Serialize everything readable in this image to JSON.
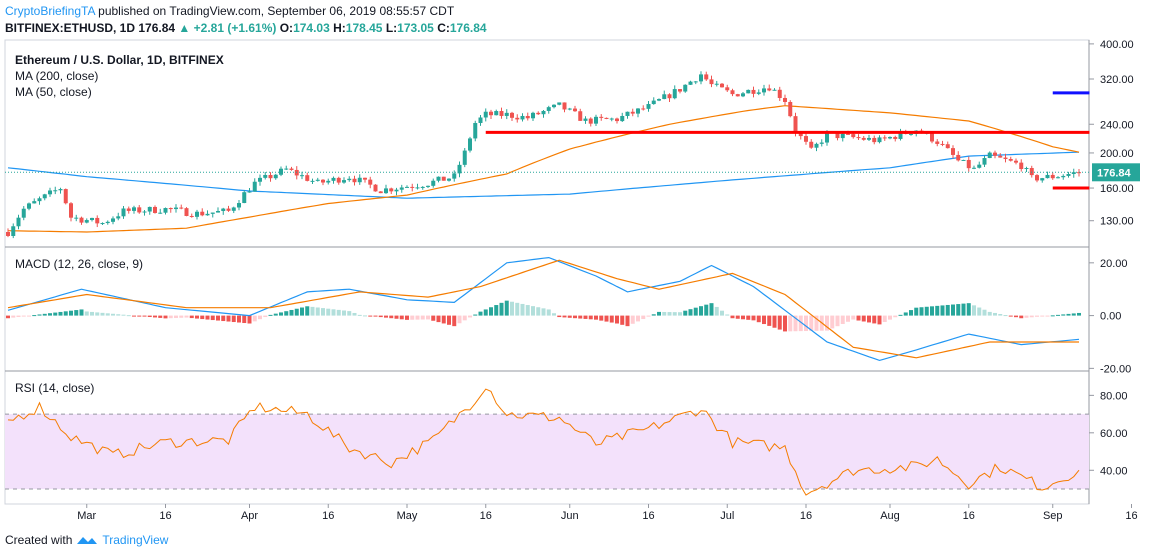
{
  "header": {
    "author": "CryptoBriefingTA",
    "published_text": " published on TradingView.com, September 06, 2019 08:55:57 CDT",
    "symbol": "BITFINEX:ETHUSD, 1D",
    "last": "176.84",
    "change": "+2.81 (+1.61%)",
    "open_label": "O:",
    "open": "174.03",
    "high_label": "H:",
    "high": "178.45",
    "low_label": "L:",
    "low": "173.05",
    "close_label": "C:",
    "close": "176.84"
  },
  "footer": {
    "created_with": "Created with",
    "brand": "TradingView"
  },
  "colors": {
    "up": "#26a69a",
    "down": "#ef5350",
    "ma200": "#2196f3",
    "ma50": "#f57c00",
    "macd": "#2196f3",
    "signal": "#f57c00",
    "rsi": "#f57c00",
    "level": "#ff0000",
    "target": "#1010ff",
    "band": "#f3e1fb"
  },
  "chart_data": [
    {
      "type": "candlestick",
      "title": "Ethereum / U.S. Dollar, 1D, BITFINEX",
      "indicator_labels": [
        "MA (200, close)",
        "MA (50, close)"
      ],
      "yscale": "log",
      "ylim": [
        110,
        410
      ],
      "y_ticks": [
        "400.00",
        "320.00",
        "240.00",
        "200.00",
        "160.00",
        "130.00"
      ],
      "last_price_label": "176.84",
      "x_ticks": [
        "Mar",
        "16",
        "Apr",
        "16",
        "May",
        "16",
        "Jun",
        "16",
        "Jul",
        "16",
        "Aug",
        "16",
        "Sep",
        "16"
      ],
      "date_range": [
        "2019-02-14",
        "2019-09-06"
      ],
      "price_path": [
        [
          "2019-02-14",
          121
        ],
        [
          "2019-02-17",
          140
        ],
        [
          "2019-02-24",
          160
        ],
        [
          "2019-02-26",
          133
        ],
        [
          "2019-03-04",
          128
        ],
        [
          "2019-03-08",
          138
        ],
        [
          "2019-03-16",
          140
        ],
        [
          "2019-03-22",
          136
        ],
        [
          "2019-03-28",
          138
        ],
        [
          "2019-04-02",
          165
        ],
        [
          "2019-04-08",
          180
        ],
        [
          "2019-04-14",
          165
        ],
        [
          "2019-04-20",
          172
        ],
        [
          "2019-04-26",
          158
        ],
        [
          "2019-05-01",
          162
        ],
        [
          "2019-05-05",
          165
        ],
        [
          "2019-05-10",
          172
        ],
        [
          "2019-05-12",
          200
        ],
        [
          "2019-05-14",
          242
        ],
        [
          "2019-05-16",
          255
        ],
        [
          "2019-05-20",
          255
        ],
        [
          "2019-05-24",
          250
        ],
        [
          "2019-05-30",
          270
        ],
        [
          "2019-06-04",
          245
        ],
        [
          "2019-06-10",
          248
        ],
        [
          "2019-06-16",
          268
        ],
        [
          "2019-06-22",
          300
        ],
        [
          "2019-06-26",
          330
        ],
        [
          "2019-06-28",
          308
        ],
        [
          "2019-07-02",
          290
        ],
        [
          "2019-07-09",
          305
        ],
        [
          "2019-07-12",
          280
        ],
        [
          "2019-07-14",
          230
        ],
        [
          "2019-07-17",
          202
        ],
        [
          "2019-07-20",
          225
        ],
        [
          "2019-07-30",
          216
        ],
        [
          "2019-08-06",
          232
        ],
        [
          "2019-08-10",
          215
        ],
        [
          "2019-08-14",
          190
        ],
        [
          "2019-08-17",
          180
        ],
        [
          "2019-08-20",
          196
        ],
        [
          "2019-08-26",
          185
        ],
        [
          "2019-08-28",
          170
        ],
        [
          "2019-09-01",
          172
        ],
        [
          "2019-09-06",
          176.84
        ]
      ],
      "ma200_path": [
        [
          "2019-02-14",
          182
        ],
        [
          "2019-03-01",
          172
        ],
        [
          "2019-04-01",
          157
        ],
        [
          "2019-05-01",
          150
        ],
        [
          "2019-06-01",
          154
        ],
        [
          "2019-07-01",
          168
        ],
        [
          "2019-08-01",
          182
        ],
        [
          "2019-08-16",
          196
        ],
        [
          "2019-09-06",
          201
        ]
      ],
      "ma50_path": [
        [
          "2019-02-14",
          122
        ],
        [
          "2019-03-01",
          121
        ],
        [
          "2019-03-20",
          124
        ],
        [
          "2019-04-01",
          133
        ],
        [
          "2019-04-16",
          145
        ],
        [
          "2019-05-01",
          153
        ],
        [
          "2019-05-20",
          175
        ],
        [
          "2019-06-01",
          205
        ],
        [
          "2019-06-20",
          240
        ],
        [
          "2019-07-05",
          262
        ],
        [
          "2019-07-12",
          270
        ],
        [
          "2019-08-01",
          258
        ],
        [
          "2019-08-16",
          245
        ],
        [
          "2019-09-01",
          208
        ],
        [
          "2019-09-06",
          201
        ]
      ],
      "levels": [
        {
          "name": "resistance",
          "price": 228,
          "from": "2019-05-16",
          "to": "2019-09-08"
        },
        {
          "name": "support",
          "price": 160,
          "from": "2019-09-01",
          "to": "2019-09-08"
        },
        {
          "name": "target",
          "price": 293,
          "from": "2019-09-01",
          "to": "2019-09-08"
        }
      ]
    },
    {
      "type": "line",
      "title": "MACD (12, 26, close, 9)",
      "ylim": [
        -21,
        26
      ],
      "y_ticks": [
        "20.00",
        "0.00",
        "-20.00"
      ],
      "tick_values": [
        20,
        0,
        -20
      ],
      "macd_path": [
        [
          "2019-02-14",
          2
        ],
        [
          "2019-02-28",
          10
        ],
        [
          "2019-03-16",
          3
        ],
        [
          "2019-04-01",
          0
        ],
        [
          "2019-04-12",
          9
        ],
        [
          "2019-04-20",
          10
        ],
        [
          "2019-05-01",
          6
        ],
        [
          "2019-05-10",
          5
        ],
        [
          "2019-05-20",
          20
        ],
        [
          "2019-05-28",
          22
        ],
        [
          "2019-06-06",
          15
        ],
        [
          "2019-06-12",
          9
        ],
        [
          "2019-06-22",
          13
        ],
        [
          "2019-06-28",
          19
        ],
        [
          "2019-07-06",
          11
        ],
        [
          "2019-07-20",
          -10
        ],
        [
          "2019-07-30",
          -17
        ],
        [
          "2019-08-06",
          -13
        ],
        [
          "2019-08-16",
          -7
        ],
        [
          "2019-08-26",
          -11
        ],
        [
          "2019-09-06",
          -9
        ]
      ],
      "signal_path": [
        [
          "2019-02-14",
          3
        ],
        [
          "2019-03-01",
          8
        ],
        [
          "2019-03-20",
          3
        ],
        [
          "2019-04-05",
          3
        ],
        [
          "2019-04-22",
          9
        ],
        [
          "2019-05-05",
          7
        ],
        [
          "2019-05-15",
          11
        ],
        [
          "2019-05-30",
          21
        ],
        [
          "2019-06-10",
          14
        ],
        [
          "2019-06-18",
          10
        ],
        [
          "2019-07-02",
          16
        ],
        [
          "2019-07-12",
          8
        ],
        [
          "2019-07-25",
          -12
        ],
        [
          "2019-08-06",
          -16
        ],
        [
          "2019-08-20",
          -10
        ],
        [
          "2019-09-06",
          -10
        ]
      ]
    },
    {
      "type": "line",
      "title": "RSI (14, close)",
      "ylim": [
        22,
        93
      ],
      "y_ticks": [
        "80.00",
        "60.00",
        "40.00"
      ],
      "tick_values": [
        80,
        60,
        40
      ],
      "band": [
        30,
        70
      ],
      "rsi_path": [
        [
          "2019-02-14",
          66
        ],
        [
          "2019-02-20",
          74
        ],
        [
          "2019-02-26",
          58
        ],
        [
          "2019-03-06",
          48
        ],
        [
          "2019-03-16",
          55
        ],
        [
          "2019-03-28",
          56
        ],
        [
          "2019-04-02",
          74
        ],
        [
          "2019-04-12",
          70
        ],
        [
          "2019-04-20",
          52
        ],
        [
          "2019-04-28",
          44
        ],
        [
          "2019-05-06",
          56
        ],
        [
          "2019-05-14",
          78
        ],
        [
          "2019-05-16",
          86
        ],
        [
          "2019-05-20",
          70
        ],
        [
          "2019-05-30",
          68
        ],
        [
          "2019-06-06",
          54
        ],
        [
          "2019-06-16",
          62
        ],
        [
          "2019-06-26",
          73
        ],
        [
          "2019-07-02",
          55
        ],
        [
          "2019-07-12",
          52
        ],
        [
          "2019-07-16",
          28
        ],
        [
          "2019-07-25",
          40
        ],
        [
          "2019-08-06",
          42
        ],
        [
          "2019-08-10",
          46
        ],
        [
          "2019-08-16",
          33
        ],
        [
          "2019-08-22",
          42
        ],
        [
          "2019-08-30",
          31
        ],
        [
          "2019-09-06",
          40
        ]
      ]
    }
  ]
}
